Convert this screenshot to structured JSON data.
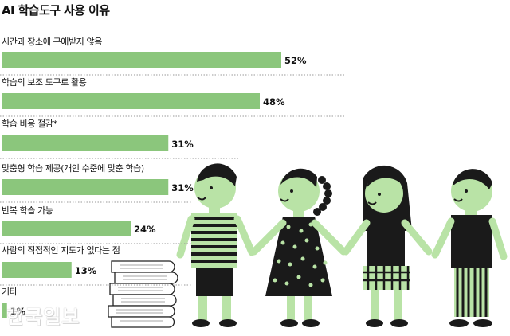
{
  "title": "AI 학습도구 사용 이유",
  "watermark": "한국일보",
  "chart_data": {
    "type": "bar",
    "orientation": "horizontal",
    "title": "AI 학습도구 사용 이유",
    "unit": "%",
    "categories": [
      "시간과 장소에 구애받지 않음",
      "학습의 보조 도구로 활용",
      "학습 비용 절감*",
      "맞춤형 학습 제공(개인 수준에 맞춘 학습)",
      "반복 학습 가능",
      "사람의 직접적인 지도가 없다는 점",
      "기타"
    ],
    "values": [
      52,
      48,
      31,
      31,
      24,
      13,
      1
    ],
    "value_labels": [
      "52%",
      "48%",
      "31%",
      "31%",
      "24%",
      "13%",
      "1%"
    ],
    "xlim": [
      0,
      55
    ],
    "bar_color": "#8bc67c",
    "grid": false
  },
  "colors": {
    "bar": "#8bc67c",
    "illustration_green": "#b9e3a6",
    "dark": "#1a1a1a"
  },
  "illustration": "four-children-holding-hands-with-stacked-books"
}
